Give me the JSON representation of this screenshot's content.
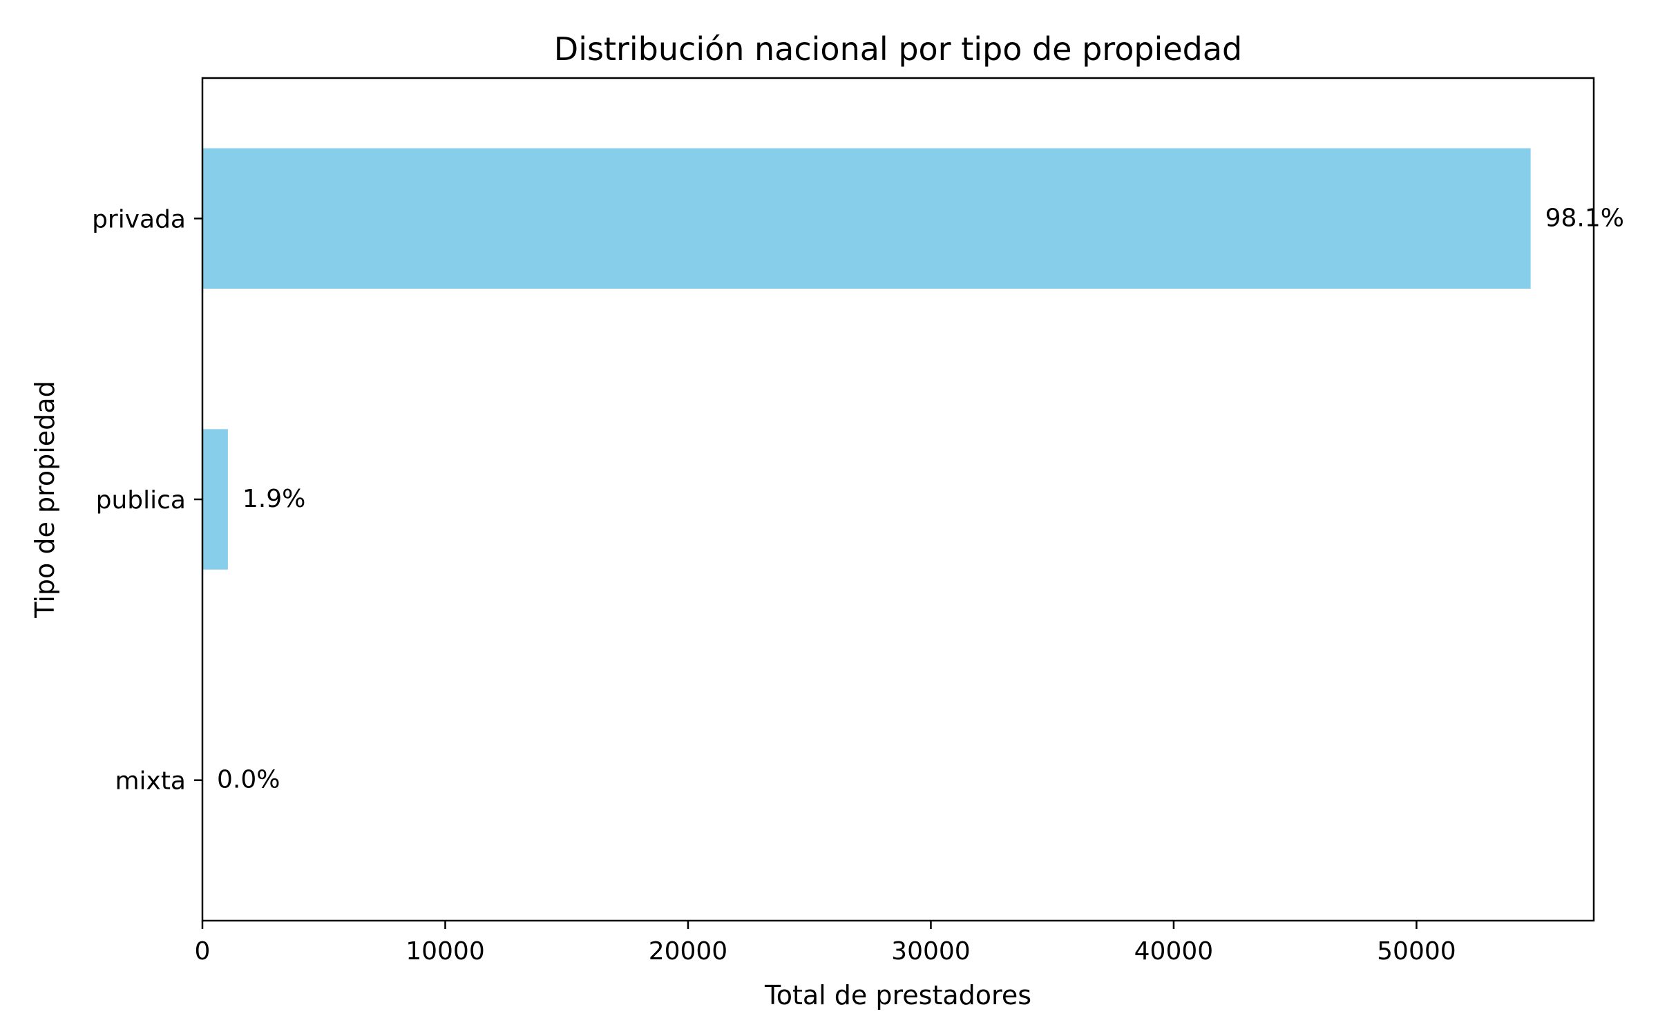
{
  "chart_data": {
    "type": "bar",
    "orientation": "horizontal",
    "title": "Distribución nacional por tipo de propiedad",
    "xlabel": "Total de prestadores",
    "ylabel": "Tipo de propiedad",
    "categories": [
      "privada",
      "publica",
      "mixta"
    ],
    "values": [
      54700,
      1050,
      0
    ],
    "data_labels": [
      "98.1%",
      "1.9%",
      "0.0%"
    ],
    "xlim": [
      0,
      57300
    ],
    "xticks": [
      0,
      10000,
      20000,
      30000,
      40000,
      50000
    ],
    "bar_color": "#87ceeb",
    "grid": false,
    "legend": "none"
  }
}
